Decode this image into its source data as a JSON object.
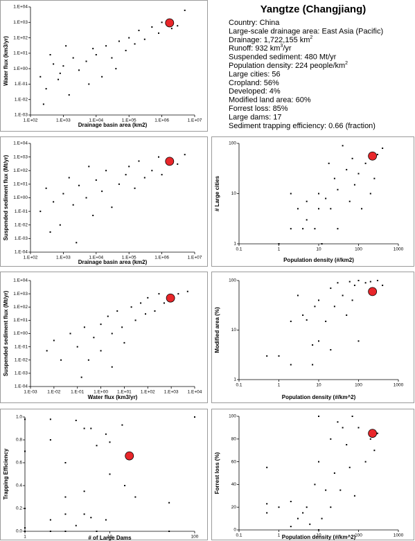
{
  "info": {
    "title": "Yangtze (Changjiang)",
    "lines": [
      {
        "text": "Country:  China"
      },
      {
        "text": "Large-scale drainage area:  East Asia (Pacific)"
      },
      {
        "text": "Drainage:  1,722,155 km",
        "sup": "2"
      },
      {
        "text": "Runoff:  932 km",
        "sup": "3",
        "tail": "/yr"
      },
      {
        "text": "Suspended sediment:  480 Mt/yr"
      },
      {
        "text": "Population density:  224 people/km",
        "sup": "2"
      },
      {
        "text": "Large cities:  56"
      },
      {
        "text": "Cropland:  56%"
      },
      {
        "text": "Developed:  4%"
      },
      {
        "text": "Modified land area:  60%"
      },
      {
        "text": "Forrest loss:  85%"
      },
      {
        "text": "Large dams:  17"
      },
      {
        "text": "Sediment trapping efficiency: 0.66 (fraction)"
      }
    ]
  },
  "chart_data": [
    {
      "type": "scatter",
      "xlabel": "Drainage basin area (km2)",
      "ylabel": "Water flux (km3/yr)",
      "xlog": true,
      "ylog": true,
      "xlim": [
        100,
        10000000
      ],
      "ylim": [
        0.001,
        10000
      ],
      "xticks": [
        {
          "value": 100,
          "label": "1.E+02"
        },
        {
          "value": 1000,
          "label": "1.E+03"
        },
        {
          "value": 10000,
          "label": "1.E+04"
        },
        {
          "value": 100000,
          "label": "1.E+05"
        },
        {
          "value": 1000000,
          "label": "1.E+06"
        },
        {
          "value": 10000000,
          "label": "1.E+07"
        }
      ],
      "yticks": [
        {
          "value": 0.001,
          "label": "1.E-03"
        },
        {
          "value": 0.01,
          "label": "1.E-02"
        },
        {
          "value": 0.1,
          "label": "1.E-01"
        },
        {
          "value": 1,
          "label": "1.E+00"
        },
        {
          "value": 10,
          "label": "1.E+01"
        },
        {
          "value": 100,
          "label": "1.E+02"
        },
        {
          "value": 1000,
          "label": "1.E+03"
        },
        {
          "value": 10000,
          "label": "1.E+04"
        }
      ],
      "series": [
        {
          "color": "#000000",
          "marker": "dot",
          "x": [
            200,
            300,
            500,
            800,
            1000,
            1500,
            2000,
            3000,
            5000,
            8000,
            10000,
            15000,
            20000,
            30000,
            50000,
            80000,
            100000,
            150000,
            200000,
            300000,
            500000,
            800000,
            1000000,
            2000000,
            3000000,
            5000000,
            400,
            1200,
            6000,
            40000,
            250,
            700
          ],
          "values": [
            0.3,
            0.05,
            2,
            0.5,
            1.5,
            0.02,
            5,
            0.8,
            3,
            20,
            8,
            0.3,
            30,
            5,
            60,
            15,
            100,
            40,
            300,
            80,
            500,
            200,
            1000,
            400,
            600,
            6000,
            8,
            30,
            0.1,
            1,
            0.005,
            0.2
          ]
        },
        {
          "color": "#e8262a",
          "marker": "circle",
          "x": [
            1722155
          ],
          "values": [
            932
          ]
        }
      ]
    },
    {
      "type": "scatter",
      "xlabel": "Drainage basin area (km2)",
      "ylabel": "Suspended sediment flux (Mt/yr)",
      "xlog": true,
      "ylog": true,
      "xlim": [
        100,
        10000000
      ],
      "ylim": [
        0.0001,
        10000
      ],
      "xticks": [
        {
          "value": 100,
          "label": "1.E+02"
        },
        {
          "value": 1000,
          "label": "1.E+03"
        },
        {
          "value": 10000,
          "label": "1.E+04"
        },
        {
          "value": 100000,
          "label": "1.E+05"
        },
        {
          "value": 1000000,
          "label": "1.E+06"
        },
        {
          "value": 10000000,
          "label": "1.E+07"
        }
      ],
      "yticks": [
        {
          "value": 0.0001,
          "label": "1.E-04"
        },
        {
          "value": 0.001,
          "label": "1.E-03"
        },
        {
          "value": 0.01,
          "label": "1.E-02"
        },
        {
          "value": 0.1,
          "label": "1.E-01"
        },
        {
          "value": 1,
          "label": "1.E+00"
        },
        {
          "value": 10,
          "label": "1.E+01"
        },
        {
          "value": 100,
          "label": "1.E+02"
        },
        {
          "value": 1000,
          "label": "1.E+03"
        },
        {
          "value": 10000,
          "label": "1.E+04"
        }
      ],
      "series": [
        {
          "color": "#000000",
          "marker": "dot",
          "x": [
            200,
            300,
            500,
            800,
            1000,
            1500,
            2000,
            3000,
            5000,
            8000,
            10000,
            15000,
            20000,
            30000,
            50000,
            80000,
            100000,
            150000,
            200000,
            300000,
            500000,
            800000,
            1000000,
            3000000,
            5000000,
            2500,
            400,
            6000
          ],
          "values": [
            0.1,
            5,
            0.5,
            0.01,
            2,
            30,
            0.3,
            8,
            1,
            0.05,
            20,
            3,
            100,
            0.2,
            10,
            50,
            200,
            5,
            500,
            30,
            100,
            1000,
            50,
            300,
            1500,
            0.0005,
            0.003,
            200
          ]
        },
        {
          "color": "#e8262a",
          "marker": "circle",
          "x": [
            1722155
          ],
          "values": [
            480
          ]
        }
      ]
    },
    {
      "type": "scatter",
      "xlabel": "Population density (#/km2)",
      "ylabel": "# Large cities",
      "xlog": true,
      "ylog": true,
      "xlim": [
        0.1,
        1000
      ],
      "ylim": [
        1,
        100
      ],
      "xticks": [
        0.1,
        1,
        10,
        100,
        1000
      ],
      "yticks": [
        1,
        10,
        100
      ],
      "series": [
        {
          "color": "#000000",
          "marker": "dot",
          "x": [
            2,
            2,
            3,
            4,
            5,
            5,
            8,
            10,
            10,
            12,
            15,
            18,
            20,
            25,
            30,
            30,
            40,
            50,
            60,
            70,
            80,
            100,
            120,
            150,
            200,
            250,
            300,
            400,
            1
          ],
          "values": [
            2,
            10,
            5,
            2,
            7,
            3,
            2,
            5,
            10,
            1,
            8,
            40,
            5,
            20,
            2,
            12,
            90,
            30,
            7,
            50,
            15,
            25,
            5,
            40,
            10,
            20,
            60,
            80,
            1
          ]
        },
        {
          "color": "#e8262a",
          "marker": "circle",
          "x": [
            224
          ],
          "values": [
            56
          ]
        }
      ]
    },
    {
      "type": "scatter",
      "xlabel": "Water flux (km3/yr)",
      "ylabel": "Suspended sediment flux (Mt/yr)",
      "xlog": true,
      "ylog": true,
      "xlim": [
        0.001,
        10000
      ],
      "ylim": [
        0.0001,
        10000
      ],
      "xticks": [
        {
          "value": 0.001,
          "label": "1.E-03"
        },
        {
          "value": 0.01,
          "label": "1.E-02"
        },
        {
          "value": 0.1,
          "label": "1.E-01"
        },
        {
          "value": 1,
          "label": "1.E+00"
        },
        {
          "value": 10,
          "label": "1.E+01"
        },
        {
          "value": 100,
          "label": "1.E+02"
        },
        {
          "value": 1000,
          "label": "1.E+03"
        },
        {
          "value": 10000,
          "label": "1.E+04"
        }
      ],
      "yticks": [
        {
          "value": 0.0001,
          "label": "1.E-04"
        },
        {
          "value": 0.001,
          "label": "1.E-03"
        },
        {
          "value": 0.01,
          "label": "1.E-02"
        },
        {
          "value": 0.1,
          "label": "1.E-01"
        },
        {
          "value": 1,
          "label": "1.E+00"
        },
        {
          "value": 10,
          "label": "1.E+01"
        },
        {
          "value": 100,
          "label": "1.E+02"
        },
        {
          "value": 1000,
          "label": "1.E+03"
        },
        {
          "value": 10000,
          "label": "1.E+04"
        }
      ],
      "series": [
        {
          "color": "#000000",
          "marker": "dot",
          "x": [
            0.005,
            0.01,
            0.02,
            0.05,
            0.1,
            0.2,
            0.3,
            0.5,
            1,
            1,
            2,
            3,
            5,
            8,
            10,
            20,
            30,
            50,
            80,
            100,
            200,
            300,
            500,
            1000,
            2000,
            5000,
            0.15,
            3
          ],
          "values": [
            0.05,
            0.3,
            0.01,
            1,
            0.1,
            3,
            0.01,
            0.5,
            5,
            0.05,
            20,
            1,
            50,
            3,
            0.2,
            100,
            10,
            200,
            30,
            500,
            50,
            1000,
            200,
            300,
            1000,
            1500,
            0.0005,
            0.003
          ]
        },
        {
          "color": "#e8262a",
          "marker": "circle",
          "x": [
            932
          ],
          "values": [
            480
          ]
        }
      ]
    },
    {
      "type": "scatter",
      "xlabel": "Population density (#/km^2)",
      "ylabel": "Modified area (%)",
      "xlog": true,
      "ylog": true,
      "xlim": [
        0.1,
        1000
      ],
      "ylim": [
        1,
        100
      ],
      "xticks": [
        0.1,
        1,
        10,
        100,
        1000
      ],
      "yticks": [
        1,
        10,
        100
      ],
      "series": [
        {
          "color": "#000000",
          "marker": "dot",
          "x": [
            0.5,
            1,
            2,
            2,
            3,
            4,
            5,
            7,
            8,
            10,
            10,
            15,
            20,
            25,
            30,
            40,
            50,
            60,
            70,
            80,
            100,
            100,
            150,
            200,
            300,
            400,
            7,
            20
          ],
          "values": [
            3,
            3,
            2,
            15,
            50,
            20,
            16,
            2,
            30,
            6,
            40,
            15,
            70,
            30,
            90,
            50,
            20,
            95,
            40,
            80,
            100,
            6,
            90,
            95,
            100,
            80,
            5,
            4
          ]
        },
        {
          "color": "#e8262a",
          "marker": "circle",
          "x": [
            224
          ],
          "values": [
            60
          ]
        }
      ]
    },
    {
      "type": "scatter",
      "xlabel": "# of Large Dams",
      "ylabel": "Trapping Efficiency",
      "xlog": true,
      "ylog": false,
      "xlim": [
        1,
        100
      ],
      "ylim": [
        0,
        1
      ],
      "xticks": [
        1,
        10,
        100
      ],
      "yticks": [
        {
          "value": 0,
          "label": "0.0"
        },
        0.2,
        0.4,
        0.6,
        0.8,
        {
          "value": 1,
          "label": "1.0"
        }
      ],
      "series": [
        {
          "color": "#000000",
          "marker": "dot",
          "x": [
            1,
            1,
            1,
            1,
            1,
            2,
            2,
            2,
            2,
            3,
            3,
            3,
            3,
            4,
            4,
            5,
            5,
            5,
            6,
            6,
            7,
            7,
            9,
            9,
            10,
            10,
            14,
            15,
            20,
            50,
            50,
            100
          ],
          "values": [
            0.98,
            0.7,
            0.2,
            0.03,
            0,
            0.98,
            0.8,
            0.1,
            0,
            0.6,
            0.3,
            0.15,
            0,
            0.97,
            0.05,
            0.35,
            0.15,
            0.9,
            0.9,
            0.12,
            0.75,
            0,
            0.85,
            0.1,
            0.5,
            0.78,
            0.93,
            0.4,
            0.3,
            0.25,
            0,
            1
          ]
        },
        {
          "color": "#e8262a",
          "marker": "circle",
          "x": [
            17
          ],
          "values": [
            0.66
          ]
        }
      ]
    },
    {
      "type": "scatter",
      "xlabel": "Population density (#/km^2)",
      "ylabel": "Forrest loss (%)",
      "xlog": true,
      "ylog": false,
      "xlim": [
        0.1,
        1000
      ],
      "ylim": [
        0,
        100
      ],
      "xticks": [
        0.1,
        1,
        10,
        100,
        1000
      ],
      "yticks": [
        0,
        20,
        40,
        60,
        80,
        100
      ],
      "series": [
        {
          "color": "#000000",
          "marker": "dot",
          "x": [
            0.5,
            0.5,
            0.5,
            1,
            2,
            2,
            3,
            4,
            5,
            6,
            8,
            10,
            10,
            12,
            15,
            20,
            20,
            25,
            30,
            35,
            40,
            50,
            60,
            70,
            80,
            100,
            150,
            200,
            250,
            300,
            10
          ],
          "values": [
            55,
            23,
            15,
            20,
            3,
            25,
            10,
            15,
            20,
            5,
            40,
            100,
            60,
            10,
            35,
            80,
            20,
            50,
            95,
            35,
            90,
            75,
            55,
            100,
            30,
            90,
            60,
            80,
            70,
            85,
            0
          ]
        },
        {
          "color": "#e8262a",
          "marker": "circle",
          "x": [
            224
          ],
          "values": [
            85
          ]
        }
      ]
    }
  ]
}
